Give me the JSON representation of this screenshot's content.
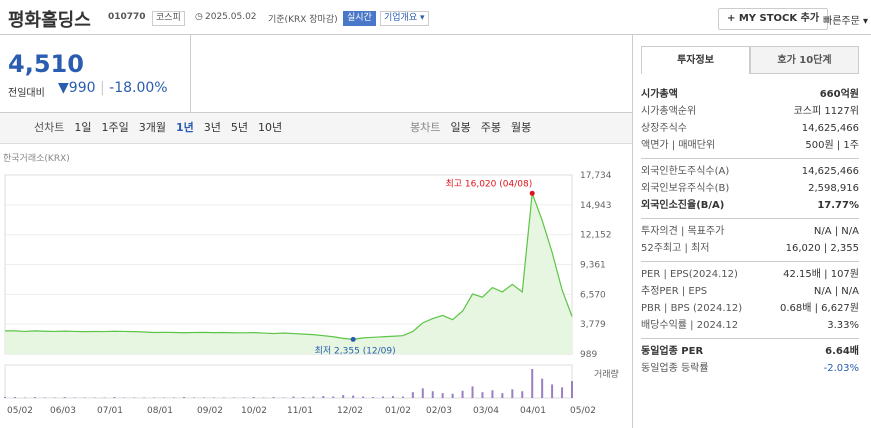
{
  "header": {
    "title": "평화홀딩스",
    "code": "010770",
    "market": "코스피",
    "date": "2025.05.02",
    "basis": "기준(KRX 장마감)",
    "realtime": "실시간",
    "overview": "기업개요",
    "my_stock": "+ MY STOCK 추가",
    "quick_order": "빠른주문"
  },
  "price": {
    "current": "4,510",
    "change_label": "전일대비",
    "change": "990",
    "rate": "-18.00%"
  },
  "toolbar": {
    "line_label": "선차트",
    "periods": [
      "1일",
      "1주일",
      "3개월",
      "1년",
      "3년",
      "5년",
      "10년"
    ],
    "active": "1년",
    "candle_label": "봉차트",
    "candles": [
      "일봉",
      "주봉",
      "월봉"
    ]
  },
  "chart": {
    "source": "한국거래소(KRX)",
    "ylim": [
      989,
      17734
    ],
    "yticks": [
      {
        "value": 17734,
        "label": "17,734"
      },
      {
        "value": 14943,
        "label": "14,943"
      },
      {
        "value": 12152,
        "label": "12,152"
      },
      {
        "value": 9361,
        "label": "9,361"
      },
      {
        "value": 6570,
        "label": "6,570"
      },
      {
        "value": 3779,
        "label": "3,779"
      },
      {
        "value": 989,
        "label": "989"
      }
    ],
    "prices": [
      3150,
      3150,
      3100,
      3150,
      3120,
      3100,
      3130,
      3100,
      3080,
      3100,
      3090,
      3120,
      3100,
      3080,
      3050,
      3000,
      3020,
      3000,
      2980,
      3000,
      3010,
      2990,
      3000,
      2980,
      2970,
      2990,
      2950,
      2900,
      2950,
      2900,
      2850,
      2800,
      2700,
      2600,
      2450,
      2355,
      2500,
      2550,
      2600,
      2650,
      2700,
      3100,
      3900,
      4300,
      4600,
      4200,
      5000,
      6600,
      6300,
      7200,
      6800,
      7500,
      6800,
      16020,
      13500,
      10500,
      7000,
      4510
    ],
    "line_color": "#5cc447",
    "high_label": "최고 16,020 (04/08)",
    "high_value": 16020,
    "low_label": "최저 2,355 (12/09)",
    "low_value": 2355,
    "volume_label": "거래량",
    "volume": [
      2,
      2,
      1,
      2,
      1,
      1,
      2,
      1,
      1,
      1,
      1,
      2,
      1,
      1,
      1,
      1,
      1,
      1,
      2,
      1,
      1,
      1,
      1,
      1,
      1,
      2,
      1,
      2,
      1,
      3,
      2,
      3,
      4,
      3,
      6,
      5,
      3,
      2,
      3,
      4,
      3,
      12,
      20,
      14,
      10,
      9,
      15,
      24,
      12,
      16,
      10,
      18,
      14,
      60,
      40,
      28,
      22,
      35
    ],
    "volume_color": "#9b7fc4",
    "xlabels": [
      "05/02",
      "06/03",
      "07/01",
      "08/01",
      "09/02",
      "10/02",
      "11/01",
      "12/02",
      "01/02",
      "02/03",
      "03/04",
      "04/01",
      "05/02"
    ]
  },
  "side": {
    "tabs": [
      "투자정보",
      "호가 10단계"
    ],
    "sections": [
      [
        {
          "label": "시가총액",
          "value": "660억원",
          "bold": true
        },
        {
          "label": "시가총액순위",
          "value": "코스피 1127위"
        },
        {
          "label": "상장주식수",
          "value": "14,625,466"
        },
        {
          "label": "액면가 | 매매단위",
          "value": "500원 | 1주"
        }
      ],
      [
        {
          "label": "외국인한도주식수(A)",
          "value": "14,625,466"
        },
        {
          "label": "외국인보유주식수(B)",
          "value": "2,598,916"
        },
        {
          "label": "외국인소진율(B/A)",
          "value": "17.77%",
          "bold": true
        }
      ],
      [
        {
          "label": "투자의견 | 목표주가",
          "value": "N/A | N/A"
        },
        {
          "label": "52주최고 | 최저",
          "value": "16,020 | 2,355"
        }
      ],
      [
        {
          "label": "PER | EPS(2024.12)",
          "value": "42.15배 | 107원"
        },
        {
          "label": "추정PER | EPS",
          "value": "N/A | N/A"
        },
        {
          "label": "PBR | BPS (2024.12)",
          "value": "0.68배 | 6,627원"
        },
        {
          "label": "배당수익률 | 2024.12",
          "value": "3.33%"
        }
      ],
      [
        {
          "label": "동일업종 PER",
          "value": "6.64배",
          "bold": true
        },
        {
          "label": "동일업종 등락률",
          "value": "-2.03%",
          "blue": true
        }
      ]
    ]
  }
}
